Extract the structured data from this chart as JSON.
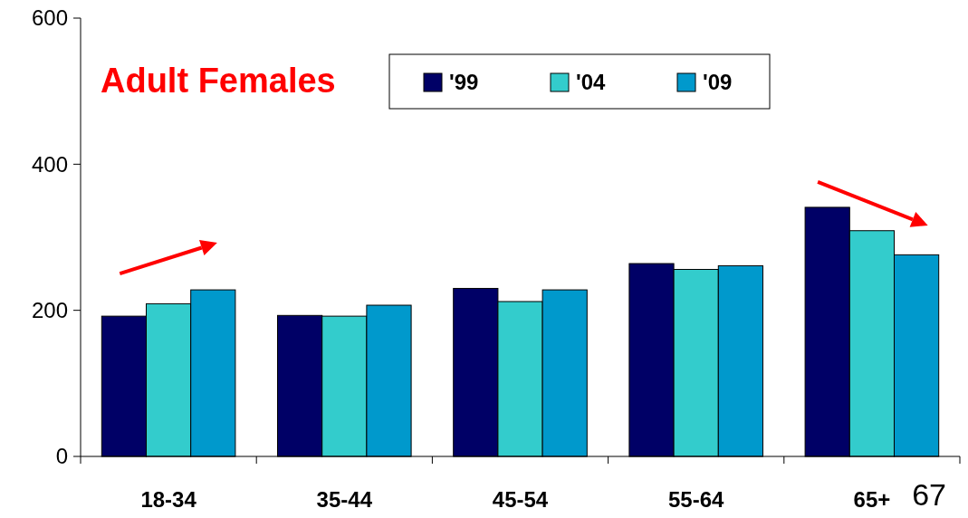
{
  "chart_data": {
    "type": "bar",
    "title": "Adult Females",
    "categories": [
      "18-34",
      "35-44",
      "45-54",
      "55-64",
      "65+"
    ],
    "series": [
      {
        "name": "'99",
        "color": "#000066",
        "values": [
          192,
          193,
          230,
          264,
          341
        ]
      },
      {
        "name": "'04",
        "color": "#33cccc",
        "values": [
          209,
          192,
          212,
          256,
          309
        ]
      },
      {
        "name": "'09",
        "color": "#0099cc",
        "values": [
          228,
          207,
          228,
          261,
          276
        ]
      }
    ],
    "ylim": [
      0,
      600
    ],
    "yticks": [
      0,
      200,
      400,
      600
    ],
    "grid": false,
    "legend": "top",
    "annotations": [
      "67"
    ]
  }
}
